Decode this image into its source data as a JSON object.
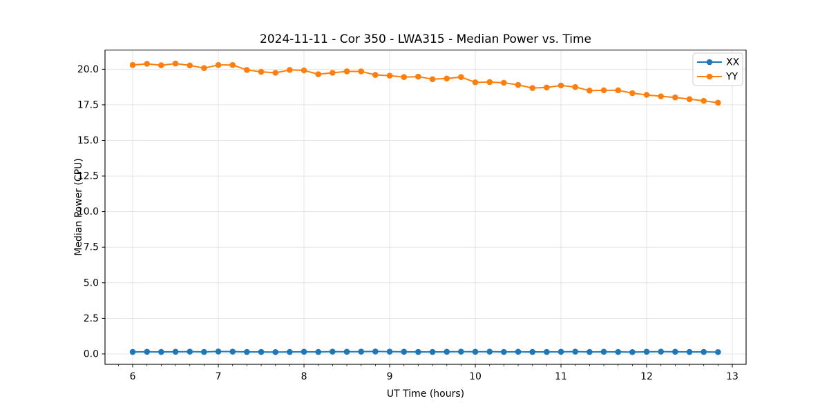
{
  "chart_data": {
    "type": "line",
    "title": "2024-11-11 - Cor 350 - LWA315 - Median Power vs. Time",
    "xlabel": "UT Time (hours)",
    "ylabel": "Median Power (CPU)",
    "xlim": [
      5.677,
      13.161
    ],
    "ylim": [
      -0.73,
      21.35
    ],
    "xticks": [
      6,
      7,
      8,
      9,
      10,
      11,
      12,
      13
    ],
    "xtick_labels": [
      "6",
      "7",
      "8",
      "9",
      "10",
      "11",
      "12",
      "13"
    ],
    "yticks": [
      0,
      2.5,
      5,
      7.5,
      10,
      12.5,
      15,
      17.5,
      20
    ],
    "ytick_labels": [
      "0.0",
      "2.5",
      "5.0",
      "7.5",
      "10.0",
      "12.5",
      "15.0",
      "17.5",
      "20.0"
    ],
    "x_minor_step": 0.166667,
    "grid": "major",
    "legend_position": "upper-right",
    "x": [
      6.0,
      6.167,
      6.333,
      6.5,
      6.667,
      6.833,
      7.0,
      7.167,
      7.333,
      7.5,
      7.667,
      7.833,
      8.0,
      8.167,
      8.333,
      8.5,
      8.667,
      8.833,
      9.0,
      9.167,
      9.333,
      9.5,
      9.667,
      9.833,
      10.0,
      10.167,
      10.333,
      10.5,
      10.667,
      10.833,
      11.0,
      11.167,
      11.333,
      11.5,
      11.667,
      11.833,
      12.0,
      12.167,
      12.333,
      12.5,
      12.667,
      12.833
    ],
    "series": [
      {
        "name": "XX",
        "color": "#1f77b4",
        "values": [
          0.14,
          0.15,
          0.14,
          0.15,
          0.16,
          0.14,
          0.17,
          0.16,
          0.14,
          0.14,
          0.13,
          0.14,
          0.15,
          0.14,
          0.16,
          0.15,
          0.16,
          0.17,
          0.16,
          0.15,
          0.14,
          0.14,
          0.15,
          0.16,
          0.15,
          0.16,
          0.14,
          0.15,
          0.14,
          0.14,
          0.15,
          0.16,
          0.14,
          0.15,
          0.14,
          0.13,
          0.15,
          0.16,
          0.15,
          0.14,
          0.14,
          0.13
        ]
      },
      {
        "name": "YY",
        "color": "#ff7f0e",
        "values": [
          20.3,
          20.38,
          20.28,
          20.4,
          20.27,
          20.08,
          20.3,
          20.3,
          19.95,
          19.82,
          19.75,
          19.95,
          19.92,
          19.65,
          19.75,
          19.85,
          19.85,
          19.6,
          19.55,
          19.45,
          19.48,
          19.3,
          19.35,
          19.45,
          19.08,
          19.1,
          19.05,
          18.9,
          18.68,
          18.72,
          18.86,
          18.75,
          18.5,
          18.52,
          18.52,
          18.32,
          18.2,
          18.1,
          18.02,
          17.9,
          17.78,
          17.65
        ]
      }
    ]
  },
  "colors": {
    "grid": "#e4e4e4",
    "spine": "#000000",
    "tick": "#000000",
    "legend_border": "#cccccc",
    "legend_bg": "#ffffff"
  }
}
